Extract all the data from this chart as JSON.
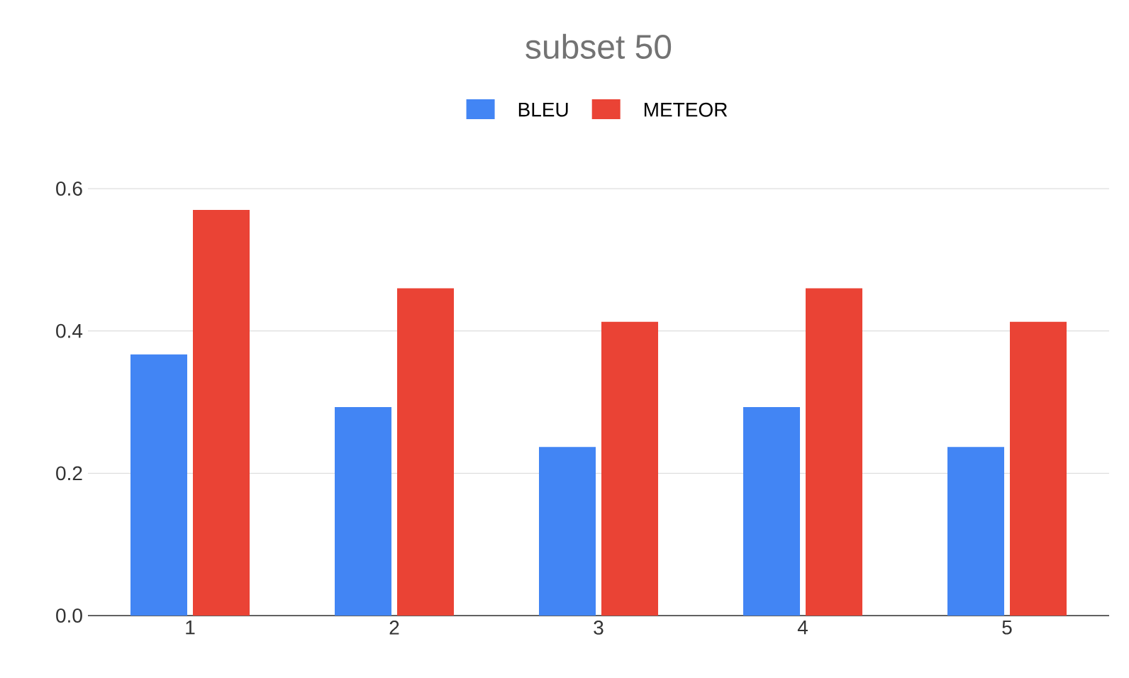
{
  "chart_data": {
    "type": "bar",
    "title": "subset 50",
    "categories": [
      "1",
      "2",
      "3",
      "4",
      "5"
    ],
    "series": [
      {
        "name": "BLEU",
        "color": "#4285f4",
        "values": [
          0.367,
          0.293,
          0.237,
          0.293,
          0.237
        ]
      },
      {
        "name": "METEOR",
        "color": "#ea4335",
        "values": [
          0.57,
          0.46,
          0.413,
          0.46,
          0.413
        ]
      }
    ],
    "ylim": [
      0,
      0.6
    ],
    "yticks": [
      {
        "value": 0,
        "label": "0.0"
      },
      {
        "value": 0.2,
        "label": "0.2"
      },
      {
        "value": 0.4,
        "label": "0.4"
      },
      {
        "value": 0.6,
        "label": "0.6"
      }
    ],
    "grid": "y",
    "legend": "top"
  }
}
